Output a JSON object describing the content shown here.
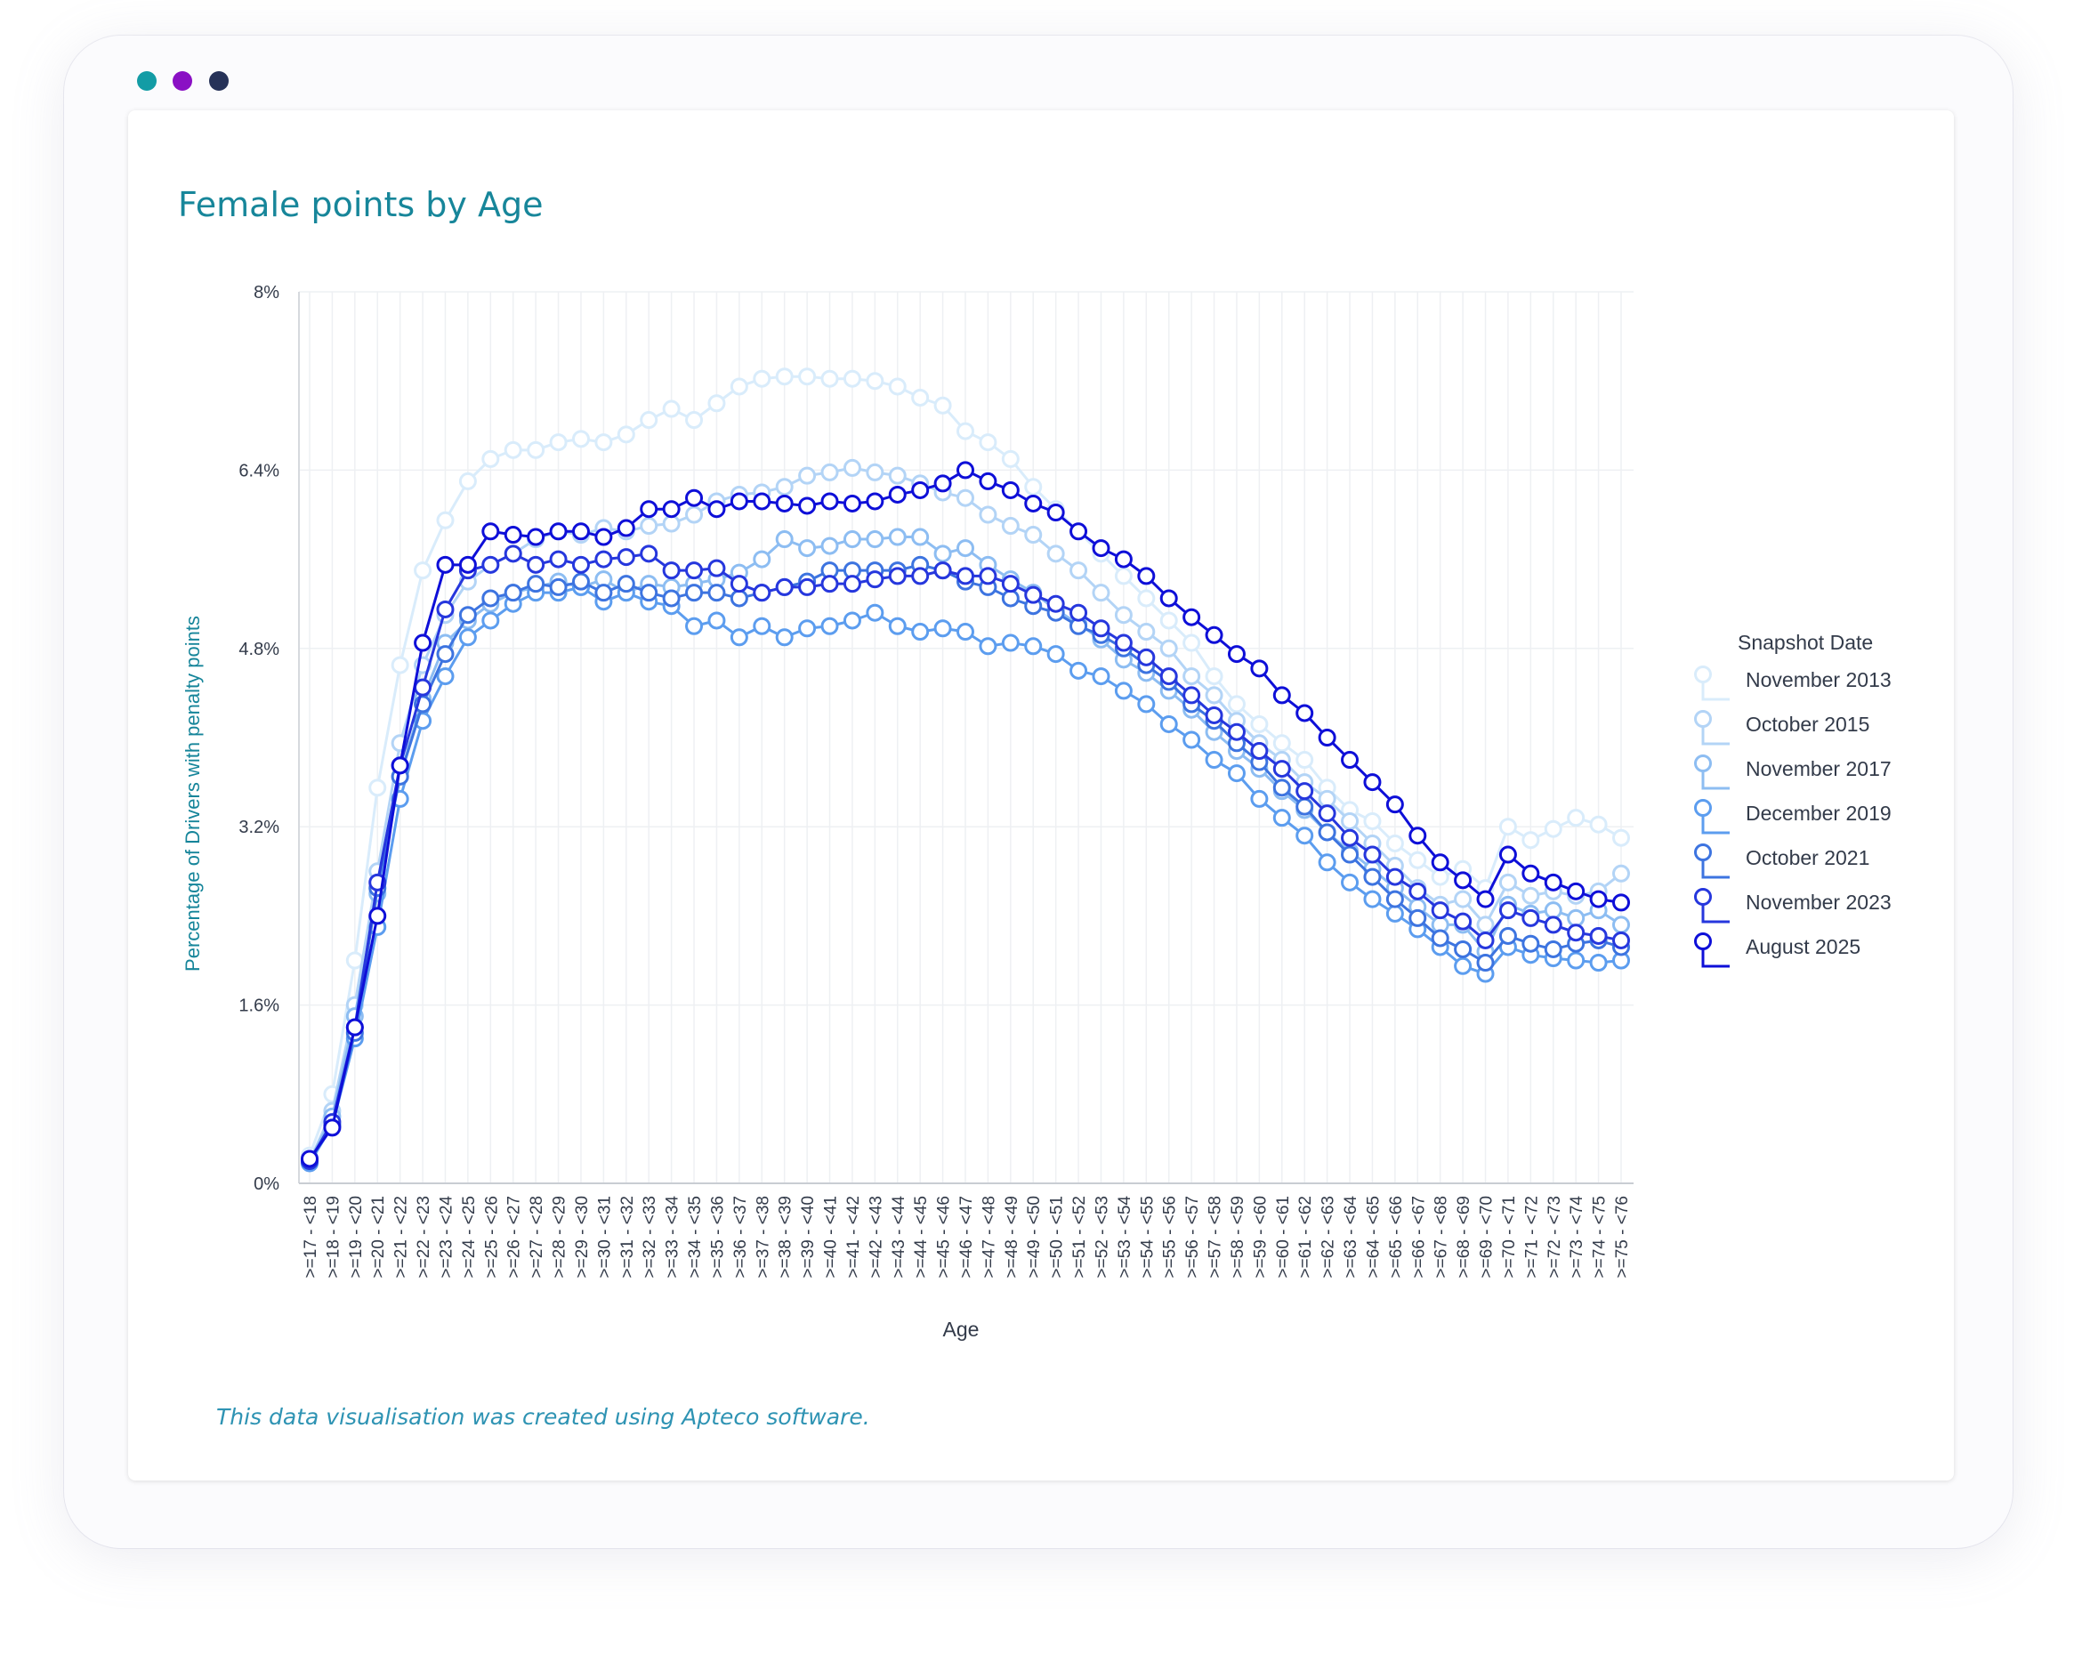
{
  "window": {
    "dots": [
      {
        "name": "window-dot-teal",
        "color": "#139ca5"
      },
      {
        "name": "window-dot-purple",
        "color": "#8a10c4"
      },
      {
        "name": "window-dot-navy",
        "color": "#263258"
      }
    ]
  },
  "footnote": "This data visualisation was created using Apteco software.",
  "chart_data": {
    "type": "line",
    "title": "Female points by Age",
    "xlabel": "Age",
    "ylabel": "Percentage of Drivers with penalty points",
    "ylim": [
      0,
      8
    ],
    "yticks": [
      0,
      1.6,
      3.2,
      4.8,
      6.4,
      8
    ],
    "ytick_labels": [
      "0%",
      "1.6%",
      "3.2%",
      "4.8%",
      "6.4%",
      "8%"
    ],
    "grid": true,
    "legend_title": "Snapshot Date",
    "legend_position": "right",
    "categories": [
      ">=17 - <18",
      ">=18 - <19",
      ">=19 - <20",
      ">=20 - <21",
      ">=21 - <22",
      ">=22 - <23",
      ">=23 - <24",
      ">=24 - <25",
      ">=25 - <26",
      ">=26 - <27",
      ">=27 - <28",
      ">=28 - <29",
      ">=29 - <30",
      ">=30 - <31",
      ">=31 - <32",
      ">=32 - <33",
      ">=33 - <34",
      ">=34 - <35",
      ">=35 - <36",
      ">=36 - <37",
      ">=37 - <38",
      ">=38 - <39",
      ">=39 - <40",
      ">=40 - <41",
      ">=41 - <42",
      ">=42 - <43",
      ">=43 - <44",
      ">=44 - <45",
      ">=45 - <46",
      ">=46 - <47",
      ">=47 - <48",
      ">=48 - <49",
      ">=49 - <50",
      ">=50 - <51",
      ">=51 - <52",
      ">=52 - <53",
      ">=53 - <54",
      ">=54 - <55",
      ">=55 - <56",
      ">=56 - <57",
      ">=57 - <58",
      ">=58 - <59",
      ">=59 - <60",
      ">=60 - <61",
      ">=61 - <62",
      ">=62 - <63",
      ">=63 - <64",
      ">=64 - <65",
      ">=65 - <66",
      ">=66 - <67",
      ">=67 - <68",
      ">=68 - <69",
      ">=69 - <70",
      ">=70 - <71",
      ">=71 - <72",
      ">=72 - <73",
      ">=73 - <74",
      ">=74 - <75",
      ">=75 - <76"
    ],
    "series": [
      {
        "name": "November 2013",
        "color": "#d9ecfb",
        "values": [
          0.25,
          0.8,
          2.0,
          3.55,
          4.65,
          5.5,
          5.95,
          6.3,
          6.5,
          6.58,
          6.58,
          6.65,
          6.68,
          6.65,
          6.72,
          6.85,
          6.95,
          6.85,
          7.0,
          7.15,
          7.22,
          7.24,
          7.24,
          7.22,
          7.22,
          7.2,
          7.15,
          7.05,
          6.98,
          6.75,
          6.65,
          6.5,
          6.25,
          6.05,
          5.85,
          5.65,
          5.45,
          5.25,
          5.05,
          4.85,
          4.55,
          4.3,
          4.12,
          3.95,
          3.8,
          3.55,
          3.35,
          3.25,
          3.05,
          2.9,
          2.75,
          2.82,
          2.65,
          3.2,
          3.08,
          3.18,
          3.28,
          3.22,
          3.1
        ]
      },
      {
        "name": "October 2015",
        "color": "#b3d4f6",
        "values": [
          0.2,
          0.65,
          1.6,
          2.8,
          3.95,
          4.65,
          5.1,
          5.4,
          5.55,
          5.65,
          5.78,
          5.85,
          5.82,
          5.88,
          5.85,
          5.9,
          5.92,
          6.0,
          6.12,
          6.18,
          6.2,
          6.25,
          6.35,
          6.38,
          6.42,
          6.38,
          6.35,
          6.28,
          6.2,
          6.15,
          6.0,
          5.9,
          5.82,
          5.65,
          5.5,
          5.3,
          5.1,
          4.95,
          4.8,
          4.55,
          4.38,
          4.15,
          3.95,
          3.8,
          3.6,
          3.45,
          3.25,
          3.05,
          2.85,
          2.65,
          2.5,
          2.55,
          2.32,
          2.7,
          2.58,
          2.62,
          2.58,
          2.62,
          2.78
        ]
      },
      {
        "name": "November 2017",
        "color": "#8dbdf2",
        "values": [
          0.2,
          0.6,
          1.5,
          2.6,
          3.65,
          4.35,
          4.85,
          5.05,
          5.2,
          5.3,
          5.35,
          5.4,
          5.35,
          5.42,
          5.3,
          5.38,
          5.35,
          5.38,
          5.42,
          5.48,
          5.6,
          5.78,
          5.7,
          5.72,
          5.78,
          5.78,
          5.8,
          5.8,
          5.65,
          5.7,
          5.55,
          5.42,
          5.3,
          5.15,
          5.02,
          4.88,
          4.7,
          4.58,
          4.42,
          4.25,
          4.05,
          3.88,
          3.72,
          3.52,
          3.35,
          3.15,
          2.98,
          2.82,
          2.65,
          2.48,
          2.32,
          2.32,
          2.08,
          2.5,
          2.42,
          2.45,
          2.38,
          2.45,
          2.32
        ]
      },
      {
        "name": "December 2019",
        "color": "#5c9def",
        "values": [
          0.18,
          0.52,
          1.3,
          2.3,
          3.45,
          4.15,
          4.55,
          4.9,
          5.05,
          5.2,
          5.3,
          5.3,
          5.35,
          5.22,
          5.3,
          5.22,
          5.18,
          5.0,
          5.05,
          4.9,
          5.0,
          4.9,
          4.98,
          5.0,
          5.05,
          5.12,
          5.0,
          4.95,
          4.98,
          4.95,
          4.82,
          4.85,
          4.82,
          4.75,
          4.6,
          4.55,
          4.42,
          4.3,
          4.12,
          3.98,
          3.8,
          3.68,
          3.45,
          3.28,
          3.12,
          2.88,
          2.7,
          2.55,
          2.42,
          2.28,
          2.12,
          1.95,
          1.88,
          2.12,
          2.05,
          2.02,
          2.0,
          1.98,
          2.0
        ]
      },
      {
        "name": "October 2021",
        "color": "#3d74e0",
        "values": [
          0.2,
          0.52,
          1.35,
          2.65,
          3.65,
          4.3,
          4.75,
          5.1,
          5.25,
          5.3,
          5.38,
          5.35,
          5.4,
          5.3,
          5.38,
          5.3,
          5.25,
          5.3,
          5.3,
          5.25,
          5.3,
          5.35,
          5.4,
          5.5,
          5.5,
          5.5,
          5.5,
          5.55,
          5.5,
          5.4,
          5.35,
          5.25,
          5.18,
          5.12,
          5.0,
          4.92,
          4.8,
          4.65,
          4.5,
          4.3,
          4.15,
          3.95,
          3.78,
          3.55,
          3.38,
          3.15,
          2.95,
          2.75,
          2.55,
          2.38,
          2.2,
          2.1,
          1.98,
          2.22,
          2.15,
          2.1,
          2.15,
          2.18,
          2.12
        ]
      },
      {
        "name": "November 2023",
        "color": "#2637dd",
        "values": [
          0.2,
          0.55,
          1.4,
          2.7,
          3.75,
          4.45,
          5.15,
          5.5,
          5.55,
          5.65,
          5.55,
          5.6,
          5.55,
          5.6,
          5.62,
          5.65,
          5.5,
          5.5,
          5.52,
          5.38,
          5.3,
          5.35,
          5.35,
          5.38,
          5.38,
          5.42,
          5.45,
          5.45,
          5.5,
          5.45,
          5.45,
          5.38,
          5.28,
          5.2,
          5.12,
          4.98,
          4.85,
          4.72,
          4.55,
          4.38,
          4.2,
          4.05,
          3.88,
          3.72,
          3.52,
          3.32,
          3.1,
          2.95,
          2.75,
          2.62,
          2.45,
          2.35,
          2.18,
          2.45,
          2.38,
          2.32,
          2.25,
          2.22,
          2.18
        ]
      },
      {
        "name": "August 2025",
        "color": "#0e0fd8",
        "values": [
          0.22,
          0.5,
          1.4,
          2.4,
          3.75,
          4.85,
          5.55,
          5.55,
          5.85,
          5.82,
          5.8,
          5.85,
          5.85,
          5.8,
          5.88,
          6.05,
          6.05,
          6.15,
          6.05,
          6.12,
          6.12,
          6.1,
          6.08,
          6.12,
          6.1,
          6.12,
          6.18,
          6.22,
          6.28,
          6.4,
          6.3,
          6.22,
          6.1,
          6.02,
          5.85,
          5.7,
          5.6,
          5.45,
          5.25,
          5.08,
          4.92,
          4.75,
          4.62,
          4.38,
          4.22,
          4.0,
          3.8,
          3.6,
          3.4,
          3.12,
          2.88,
          2.72,
          2.55,
          2.95,
          2.78,
          2.7,
          2.62,
          2.55,
          2.52
        ]
      }
    ]
  }
}
